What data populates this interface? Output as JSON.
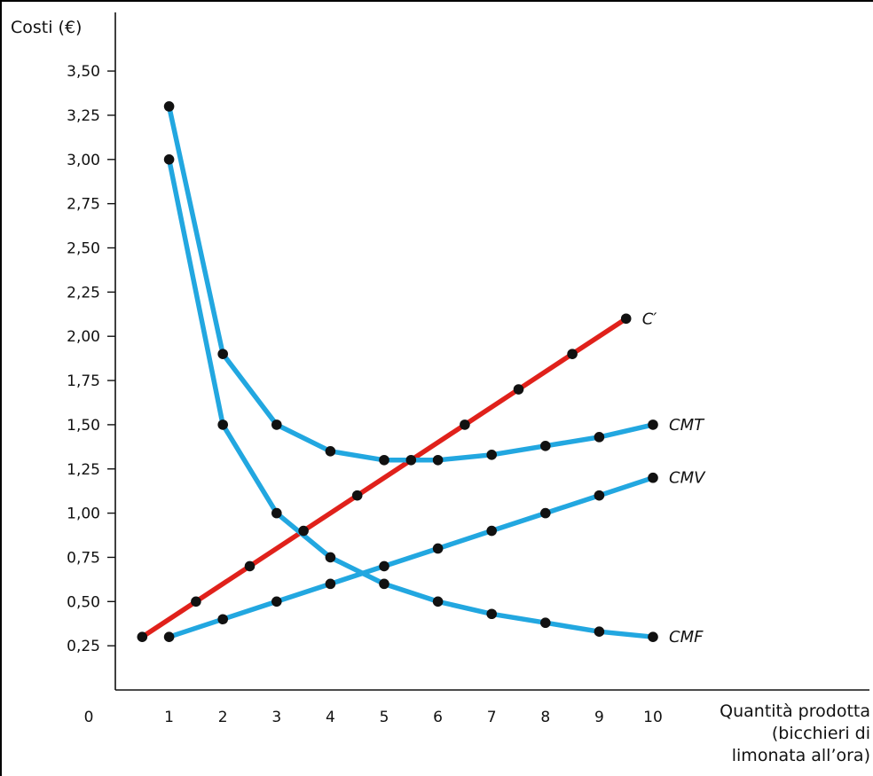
{
  "chart_data": {
    "type": "line",
    "ylabel": "Costi (€)",
    "xlabel_lines": [
      "Quantità prodotta",
      "(bicchieri di",
      "limonata all’ora)"
    ],
    "origin_label": "0",
    "xlim": [
      0,
      10
    ],
    "ylim": [
      0,
      3.75
    ],
    "x_ticks": [
      1,
      2,
      3,
      4,
      5,
      6,
      7,
      8,
      9,
      10
    ],
    "x_tick_labels": [
      "1",
      "2",
      "3",
      "4",
      "5",
      "6",
      "7",
      "8",
      "9",
      "10"
    ],
    "y_ticks": [
      0.25,
      0.5,
      0.75,
      1.0,
      1.25,
      1.5,
      1.75,
      2.0,
      2.25,
      2.5,
      2.75,
      3.0,
      3.25,
      3.5
    ],
    "y_tick_labels": [
      "0,25",
      "0,50",
      "0,75",
      "1,00",
      "1,25",
      "1,50",
      "1,75",
      "2,00",
      "2,25",
      "2,50",
      "2,75",
      "3,00",
      "3,25",
      "3,50"
    ],
    "grid": false,
    "series": [
      {
        "name": "C′",
        "color": "#e0211b",
        "x": [
          0.5,
          1.5,
          2.5,
          3.5,
          4.5,
          5.5,
          6.5,
          7.5,
          8.5,
          9.5
        ],
        "values": [
          0.3,
          0.5,
          0.7,
          0.9,
          1.1,
          1.3,
          1.5,
          1.7,
          1.9,
          2.1
        ]
      },
      {
        "name": "CMT",
        "color": "#22a7e0",
        "x": [
          1,
          2,
          3,
          4,
          5,
          6,
          7,
          8,
          9,
          10
        ],
        "values": [
          3.3,
          1.9,
          1.5,
          1.35,
          1.3,
          1.3,
          1.33,
          1.38,
          1.43,
          1.5
        ]
      },
      {
        "name": "CMV",
        "color": "#22a7e0",
        "x": [
          1,
          2,
          3,
          4,
          5,
          6,
          7,
          8,
          9,
          10
        ],
        "values": [
          0.3,
          0.4,
          0.5,
          0.6,
          0.7,
          0.8,
          0.9,
          1.0,
          1.1,
          1.2
        ]
      },
      {
        "name": "CMF",
        "color": "#22a7e0",
        "x": [
          1,
          2,
          3,
          4,
          5,
          6,
          7,
          8,
          9,
          10
        ],
        "values": [
          3.0,
          1.5,
          1.0,
          0.75,
          0.6,
          0.5,
          0.43,
          0.38,
          0.33,
          0.3
        ]
      }
    ]
  }
}
